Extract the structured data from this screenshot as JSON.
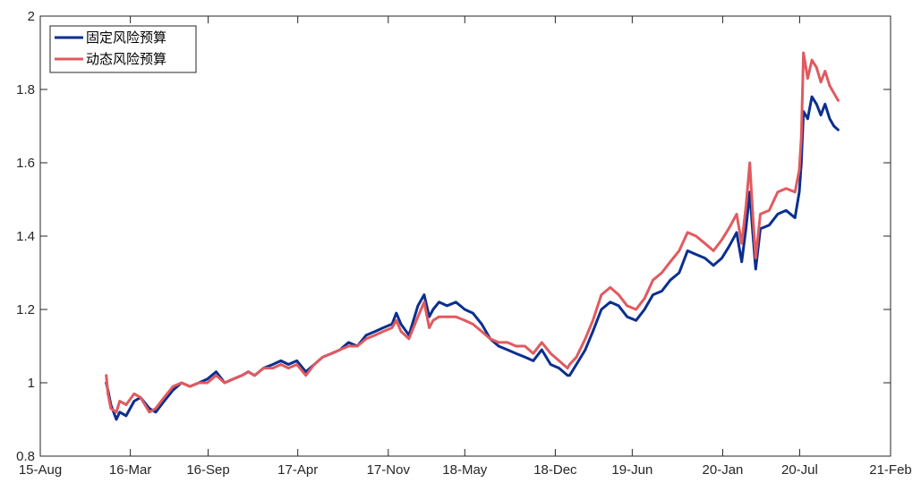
{
  "chart_data": {
    "type": "line",
    "title": "",
    "xlabel": "",
    "ylabel": "",
    "xlim": [
      "2015-08-01",
      "2021-02-01"
    ],
    "ylim": [
      0.8,
      2.0
    ],
    "xticks": [
      "2015-08-01",
      "2016-03-01",
      "2016-09-01",
      "2017-04-01",
      "2017-11-01",
      "2018-05-01",
      "2018-12-01",
      "2019-06-01",
      "2020-01-01",
      "2020-07-01",
      "2021-02-01"
    ],
    "xtick_labels": [
      "15-Aug",
      "16-Mar",
      "16-Sep",
      "17-Apr",
      "17-Nov",
      "18-May",
      "18-Dec",
      "19-Jun",
      "20-Jan",
      "20-Jul",
      "21-Feb"
    ],
    "yticks": [
      0.8,
      1.0,
      1.2,
      1.4,
      1.6,
      1.8,
      2.0
    ],
    "ytick_labels": [
      "0.8",
      "1",
      "1.2",
      "1.4",
      "1.6",
      "1.8",
      "2"
    ],
    "grid": false,
    "legend_position": "top-left",
    "series": [
      {
        "name": "固定风险预算",
        "color": "#0a2f8f",
        "x": [
          "2016-01-04",
          "2016-01-08",
          "2016-01-15",
          "2016-01-28",
          "2016-02-05",
          "2016-02-20",
          "2016-03-10",
          "2016-03-25",
          "2016-04-15",
          "2016-04-30",
          "2016-05-20",
          "2016-06-10",
          "2016-06-30",
          "2016-07-20",
          "2016-08-10",
          "2016-08-30",
          "2016-09-20",
          "2016-10-10",
          "2016-10-30",
          "2016-11-20",
          "2016-12-05",
          "2016-12-20",
          "2017-01-10",
          "2017-02-01",
          "2017-02-20",
          "2017-03-10",
          "2017-03-30",
          "2017-04-20",
          "2017-05-10",
          "2017-05-30",
          "2017-06-20",
          "2017-07-10",
          "2017-07-30",
          "2017-08-20",
          "2017-09-10",
          "2017-10-01",
          "2017-10-20",
          "2017-11-10",
          "2017-11-20",
          "2017-12-01",
          "2017-12-20",
          "2018-01-10",
          "2018-01-25",
          "2018-02-06",
          "2018-02-15",
          "2018-03-01",
          "2018-03-20",
          "2018-04-10",
          "2018-05-01",
          "2018-05-20",
          "2018-06-10",
          "2018-06-30",
          "2018-07-20",
          "2018-08-10",
          "2018-08-30",
          "2018-09-20",
          "2018-10-10",
          "2018-10-30",
          "2018-11-20",
          "2018-12-10",
          "2018-12-30",
          "2019-01-04",
          "2019-01-20",
          "2019-02-10",
          "2019-02-28",
          "2019-03-20",
          "2019-04-10",
          "2019-04-30",
          "2019-05-20",
          "2019-06-10",
          "2019-06-30",
          "2019-07-20",
          "2019-08-10",
          "2019-08-30",
          "2019-09-20",
          "2019-10-10",
          "2019-10-30",
          "2019-11-20",
          "2019-12-10",
          "2019-12-30",
          "2020-01-15",
          "2020-01-20",
          "2020-02-03",
          "2020-02-15",
          "2020-02-25",
          "2020-03-05",
          "2020-03-12",
          "2020-03-19",
          "2020-03-30",
          "2020-04-20",
          "2020-05-10",
          "2020-05-30",
          "2020-06-20",
          "2020-06-30",
          "2020-07-05",
          "2020-07-10",
          "2020-07-20",
          "2020-07-30",
          "2020-08-10",
          "2020-08-20",
          "2020-08-30",
          "2020-09-10",
          "2020-09-20",
          "2020-09-30"
        ],
        "y": [
          1.0,
          0.98,
          0.94,
          0.9,
          0.92,
          0.91,
          0.95,
          0.96,
          0.93,
          0.92,
          0.95,
          0.98,
          1.0,
          0.99,
          1.0,
          1.01,
          1.03,
          1.0,
          1.01,
          1.02,
          1.03,
          1.02,
          1.04,
          1.05,
          1.06,
          1.05,
          1.06,
          1.03,
          1.05,
          1.07,
          1.08,
          1.09,
          1.11,
          1.1,
          1.13,
          1.14,
          1.15,
          1.16,
          1.19,
          1.16,
          1.13,
          1.21,
          1.24,
          1.18,
          1.2,
          1.22,
          1.21,
          1.22,
          1.2,
          1.19,
          1.16,
          1.12,
          1.1,
          1.09,
          1.08,
          1.07,
          1.06,
          1.09,
          1.05,
          1.04,
          1.02,
          1.02,
          1.05,
          1.09,
          1.14,
          1.2,
          1.22,
          1.21,
          1.18,
          1.17,
          1.2,
          1.24,
          1.25,
          1.28,
          1.3,
          1.36,
          1.35,
          1.34,
          1.32,
          1.34,
          1.37,
          1.38,
          1.41,
          1.33,
          1.42,
          1.52,
          1.41,
          1.31,
          1.42,
          1.43,
          1.46,
          1.47,
          1.45,
          1.52,
          1.6,
          1.74,
          1.72,
          1.78,
          1.76,
          1.73,
          1.76,
          1.72,
          1.7,
          1.69
        ]
      },
      {
        "name": "动态风险预算",
        "color": "#e05a5f",
        "x": [
          "2016-01-04",
          "2016-01-08",
          "2016-01-15",
          "2016-01-28",
          "2016-02-05",
          "2016-02-20",
          "2016-03-10",
          "2016-03-25",
          "2016-04-15",
          "2016-04-30",
          "2016-05-20",
          "2016-06-10",
          "2016-06-30",
          "2016-07-20",
          "2016-08-10",
          "2016-08-30",
          "2016-09-20",
          "2016-10-10",
          "2016-10-30",
          "2016-11-20",
          "2016-12-05",
          "2016-12-20",
          "2017-01-10",
          "2017-02-01",
          "2017-02-20",
          "2017-03-10",
          "2017-03-30",
          "2017-04-20",
          "2017-05-10",
          "2017-05-30",
          "2017-06-20",
          "2017-07-10",
          "2017-07-30",
          "2017-08-20",
          "2017-09-10",
          "2017-10-01",
          "2017-10-20",
          "2017-11-10",
          "2017-11-20",
          "2017-12-01",
          "2017-12-20",
          "2018-01-10",
          "2018-01-25",
          "2018-02-06",
          "2018-02-15",
          "2018-03-01",
          "2018-03-20",
          "2018-04-10",
          "2018-05-01",
          "2018-05-20",
          "2018-06-10",
          "2018-06-30",
          "2018-07-20",
          "2018-08-10",
          "2018-08-30",
          "2018-09-20",
          "2018-10-10",
          "2018-10-30",
          "2018-11-20",
          "2018-12-10",
          "2018-12-30",
          "2019-01-04",
          "2019-01-20",
          "2019-02-10",
          "2019-02-28",
          "2019-03-20",
          "2019-04-10",
          "2019-04-30",
          "2019-05-20",
          "2019-06-10",
          "2019-06-30",
          "2019-07-20",
          "2019-08-10",
          "2019-08-30",
          "2019-09-20",
          "2019-10-10",
          "2019-10-30",
          "2019-11-20",
          "2019-12-10",
          "2019-12-30",
          "2020-01-15",
          "2020-01-20",
          "2020-02-03",
          "2020-02-15",
          "2020-02-25",
          "2020-03-05",
          "2020-03-12",
          "2020-03-19",
          "2020-03-30",
          "2020-04-20",
          "2020-05-10",
          "2020-05-30",
          "2020-06-20",
          "2020-06-30",
          "2020-07-05",
          "2020-07-10",
          "2020-07-20",
          "2020-07-30",
          "2020-08-10",
          "2020-08-20",
          "2020-08-30",
          "2020-09-10",
          "2020-09-20",
          "2020-09-30"
        ],
        "y": [
          1.02,
          0.97,
          0.93,
          0.92,
          0.95,
          0.94,
          0.97,
          0.96,
          0.92,
          0.93,
          0.96,
          0.99,
          1.0,
          0.99,
          1.0,
          1.0,
          1.02,
          1.0,
          1.01,
          1.02,
          1.03,
          1.02,
          1.04,
          1.04,
          1.05,
          1.04,
          1.05,
          1.02,
          1.05,
          1.07,
          1.08,
          1.09,
          1.1,
          1.1,
          1.12,
          1.13,
          1.14,
          1.15,
          1.17,
          1.14,
          1.12,
          1.18,
          1.22,
          1.15,
          1.17,
          1.18,
          1.18,
          1.18,
          1.17,
          1.16,
          1.14,
          1.12,
          1.11,
          1.11,
          1.1,
          1.1,
          1.08,
          1.11,
          1.08,
          1.06,
          1.04,
          1.05,
          1.07,
          1.12,
          1.17,
          1.24,
          1.26,
          1.24,
          1.21,
          1.2,
          1.23,
          1.28,
          1.3,
          1.33,
          1.36,
          1.41,
          1.4,
          1.38,
          1.36,
          1.39,
          1.42,
          1.43,
          1.46,
          1.38,
          1.48,
          1.6,
          1.46,
          1.34,
          1.46,
          1.47,
          1.52,
          1.53,
          1.52,
          1.58,
          1.67,
          1.9,
          1.83,
          1.88,
          1.86,
          1.82,
          1.85,
          1.81,
          1.79,
          1.77
        ]
      }
    ]
  }
}
